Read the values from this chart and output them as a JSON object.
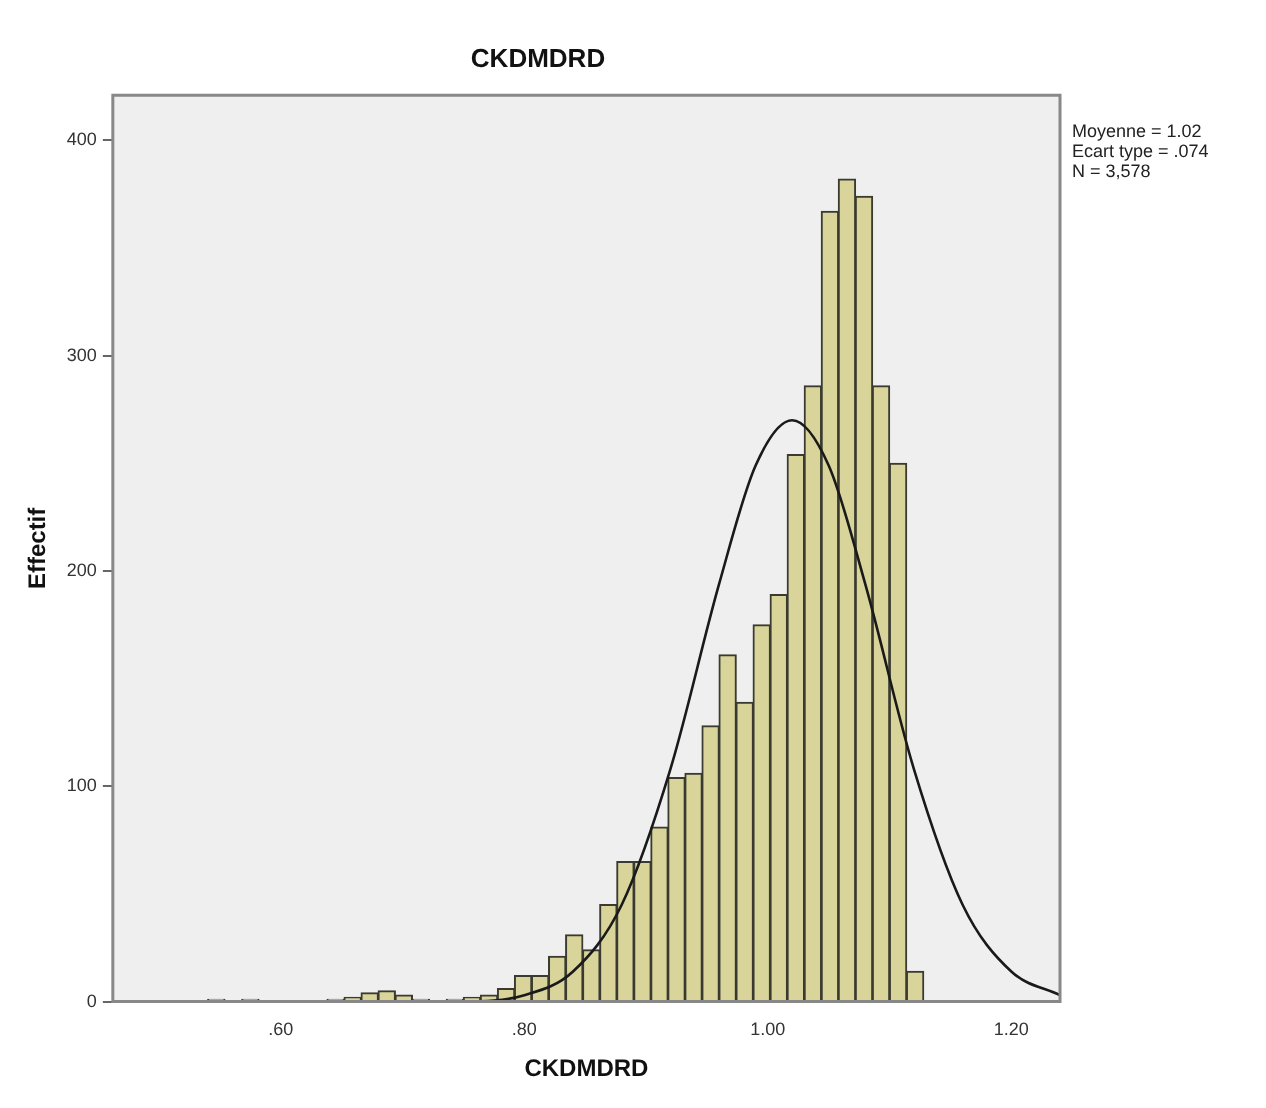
{
  "chart_data": {
    "type": "histogram",
    "title": "CKDMDRD",
    "xlabel": "CKDMDRD",
    "ylabel": "Effectif",
    "bins": [
      0.54,
      0.554,
      0.568,
      0.582,
      0.596,
      0.61,
      0.624,
      0.638,
      0.652,
      0.666,
      0.68,
      0.694,
      0.708,
      0.722,
      0.736,
      0.75,
      0.764,
      0.778,
      0.792,
      0.806,
      0.82,
      0.834,
      0.848,
      0.862,
      0.876,
      0.89,
      0.904,
      0.918,
      0.932,
      0.946,
      0.96,
      0.974,
      0.988,
      1.002,
      1.016,
      1.03,
      1.044,
      1.058,
      1.072,
      1.086,
      1.1,
      1.114,
      1.128
    ],
    "values": [
      1,
      0,
      1,
      0,
      0,
      0,
      0,
      1,
      2,
      4,
      5,
      3,
      1,
      0,
      1,
      2,
      3,
      6,
      12,
      12,
      21,
      31,
      24,
      45,
      65,
      65,
      81,
      104,
      106,
      128,
      161,
      139,
      175,
      189,
      254,
      286,
      367,
      382,
      374,
      286,
      250,
      14
    ],
    "color": "#d8d49a",
    "series": [
      {
        "type": "line",
        "color": "#1a1a1a",
        "x": [
          0.47,
          0.6,
          0.7,
          0.75,
          0.8,
          0.84,
          0.88,
          0.92,
          0.96,
          0.99,
          1.02,
          1.05,
          1.08,
          1.12,
          1.16,
          1.2,
          1.24
        ],
        "values": [
          0,
          0,
          0,
          0,
          3,
          14,
          45,
          108,
          194,
          249,
          270,
          249,
          194,
          108,
          45,
          14,
          3
        ]
      }
    ],
    "marker": "none",
    "xlim": [
      0.462,
      1.24
    ],
    "xticks": [
      {
        "value": 0.6,
        "label": ".60"
      },
      {
        "value": 0.8,
        "label": ".80"
      },
      {
        "value": 1.0,
        "label": "1.00"
      },
      {
        "value": 1.2,
        "label": "1.20"
      }
    ],
    "ylim": [
      0,
      421
    ],
    "yticks": [
      0,
      100,
      200,
      300,
      400
    ],
    "grid": false,
    "legend": false,
    "annotations": [
      "Moyenne = 1.02",
      "Ecart type = .074",
      "N = 3,578"
    ]
  }
}
